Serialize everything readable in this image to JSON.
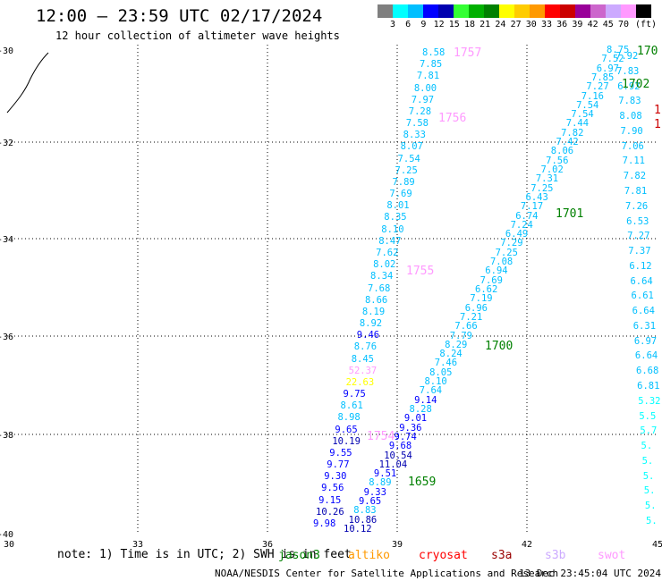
{
  "header": {
    "title": "12:00 – 23:59 UTC 02/17/2024",
    "subtitle": "12 hour collection of altimeter wave heights"
  },
  "colorbar": {
    "colors": [
      "#7f7f7f",
      "#00ffff",
      "#00bfff",
      "#0000ff",
      "#0000b0",
      "#33ff33",
      "#00b000",
      "#008000",
      "#ffff00",
      "#ffcc00",
      "#ff9900",
      "#ff0000",
      "#cc0000",
      "#990099",
      "#cc66cc",
      "#ccaaff",
      "#ff99ff",
      "#000000"
    ],
    "labels": [
      "3",
      "6",
      "9",
      "12",
      "15",
      "18",
      "21",
      "24",
      "27",
      "30",
      "33",
      "36",
      "39",
      "42",
      "45",
      "70"
    ],
    "unit": "(ft)"
  },
  "axes": {
    "lat_labels": [
      "-30",
      "-32",
      "-34",
      "-36",
      "-38",
      "-40"
    ],
    "lon_labels": [
      "30",
      "33",
      "36",
      "39",
      "42",
      "45"
    ]
  },
  "footer": {
    "note": "note: 1) Time is in UTC; 2) SWH is in feet",
    "satellites": [
      {
        "name": "jason3",
        "color": "#008000"
      },
      {
        "name": "altiko",
        "color": "#ff9900"
      },
      {
        "name": "cryosat",
        "color": "#ff0000"
      },
      {
        "name": "s3a",
        "color": "#990000"
      },
      {
        "name": "s3b",
        "color": "#ccaaff"
      },
      {
        "name": "swot",
        "color": "#ff99ff"
      }
    ],
    "credit": "NOAA/NESDIS Center for Satellite Applications and Research",
    "generated": "13 Dec 23:45:04 UTC 2024"
  },
  "map_data": {
    "tracks": [
      {
        "id": "track-a",
        "values": [
          [
            "8.58",
            "#00bfff"
          ],
          [
            "7.85",
            "#00bfff"
          ],
          [
            "7.81",
            "#00bfff"
          ],
          [
            "8.00",
            "#00bfff"
          ],
          [
            "7.97",
            "#00bfff"
          ],
          [
            "7.28",
            "#00bfff"
          ],
          [
            "7.58",
            "#00bfff"
          ],
          [
            "8.33",
            "#00bfff"
          ],
          [
            "8.07",
            "#00bfff"
          ],
          [
            "7.54",
            "#00bfff"
          ],
          [
            "7.25",
            "#00bfff"
          ],
          [
            "7.89",
            "#00bfff"
          ],
          [
            "7.69",
            "#00bfff"
          ],
          [
            "8.01",
            "#00bfff"
          ],
          [
            "8.35",
            "#00bfff"
          ],
          [
            "8.10",
            "#00bfff"
          ],
          [
            "8.47",
            "#00bfff"
          ],
          [
            "7.62",
            "#00bfff"
          ],
          [
            "8.02",
            "#00bfff"
          ],
          [
            "8.34",
            "#00bfff"
          ],
          [
            "7.68",
            "#00bfff"
          ],
          [
            "8.66",
            "#00bfff"
          ],
          [
            "8.19",
            "#00bfff"
          ],
          [
            "8.92",
            "#00bfff"
          ],
          [
            "9.46",
            "#0000ff"
          ],
          [
            "8.76",
            "#00bfff"
          ],
          [
            "8.45",
            "#00bfff"
          ],
          [
            "52.37",
            "#ff99ff"
          ],
          [
            "22.63",
            "#ffff00"
          ],
          [
            "9.75",
            "#0000ff"
          ],
          [
            "8.61",
            "#00bfff"
          ],
          [
            "8.98",
            "#00bfff"
          ],
          [
            "9.65",
            "#0000ff"
          ],
          [
            "10.19",
            "#0000b0"
          ],
          [
            "9.55",
            "#0000ff"
          ],
          [
            "9.77",
            "#0000ff"
          ],
          [
            "9.30",
            "#0000ff"
          ],
          [
            "9.56",
            "#0000ff"
          ],
          [
            "9.15",
            "#0000ff"
          ],
          [
            "10.26",
            "#0000b0"
          ],
          [
            "9.98",
            "#0000ff"
          ]
        ]
      },
      {
        "id": "track-b",
        "values": [
          [
            "8.75",
            "#00bfff"
          ],
          [
            "7.52",
            "#00bfff"
          ],
          [
            "6.97",
            "#00bfff"
          ],
          [
            "7.85",
            "#00bfff"
          ],
          [
            "7.27",
            "#00bfff"
          ],
          [
            "7.16",
            "#00bfff"
          ],
          [
            "7.54",
            "#00bfff"
          ],
          [
            "7.54",
            "#00bfff"
          ],
          [
            "7.44",
            "#00bfff"
          ],
          [
            "7.82",
            "#00bfff"
          ],
          [
            "7.42",
            "#00bfff"
          ],
          [
            "8.06",
            "#00bfff"
          ],
          [
            "7.56",
            "#00bfff"
          ],
          [
            "7.02",
            "#00bfff"
          ],
          [
            "7.31",
            "#00bfff"
          ],
          [
            "7.25",
            "#00bfff"
          ],
          [
            "6.43",
            "#00bfff"
          ],
          [
            "7.17",
            "#00bfff"
          ],
          [
            "6.74",
            "#00bfff"
          ],
          [
            "7.24",
            "#00bfff"
          ],
          [
            "6.49",
            "#00bfff"
          ],
          [
            "7.29",
            "#00bfff"
          ],
          [
            "7.25",
            "#00bfff"
          ],
          [
            "7.08",
            "#00bfff"
          ],
          [
            "6.94",
            "#00bfff"
          ],
          [
            "7.69",
            "#00bfff"
          ],
          [
            "6.62",
            "#00bfff"
          ],
          [
            "7.19",
            "#00bfff"
          ],
          [
            "6.96",
            "#00bfff"
          ],
          [
            "7.21",
            "#00bfff"
          ],
          [
            "7.66",
            "#00bfff"
          ],
          [
            "7.79",
            "#00bfff"
          ],
          [
            "8.29",
            "#00bfff"
          ],
          [
            "8.24",
            "#00bfff"
          ],
          [
            "7.46",
            "#00bfff"
          ],
          [
            "8.05",
            "#00bfff"
          ],
          [
            "8.10",
            "#00bfff"
          ],
          [
            "7.64",
            "#00bfff"
          ],
          [
            "9.14",
            "#0000ff"
          ],
          [
            "8.28",
            "#00bfff"
          ],
          [
            "9.01",
            "#0000ff"
          ],
          [
            "9.36",
            "#0000ff"
          ],
          [
            "9.74",
            "#0000ff"
          ],
          [
            "9.68",
            "#0000ff"
          ],
          [
            "10.54",
            "#0000b0"
          ],
          [
            "11.04",
            "#0000b0"
          ],
          [
            "9.51",
            "#0000ff"
          ],
          [
            "8.89",
            "#00bfff"
          ],
          [
            "9.33",
            "#0000ff"
          ],
          [
            "9.65",
            "#0000ff"
          ],
          [
            "8.83",
            "#00bfff"
          ],
          [
            "10.86",
            "#0000b0"
          ],
          [
            "10.12",
            "#0000b0"
          ]
        ]
      },
      {
        "id": "track-c",
        "values": [
          [
            "7.92",
            "#00bfff"
          ],
          [
            "7.83",
            "#00bfff"
          ],
          [
            "6.92",
            "#00bfff"
          ],
          [
            "7.83",
            "#00bfff"
          ],
          [
            "8.08",
            "#00bfff"
          ],
          [
            "7.90",
            "#00bfff"
          ],
          [
            "7.06",
            "#00bfff"
          ],
          [
            "7.11",
            "#00bfff"
          ],
          [
            "7.82",
            "#00bfff"
          ],
          [
            "7.81",
            "#00bfff"
          ],
          [
            "7.26",
            "#00bfff"
          ],
          [
            "6.53",
            "#00bfff"
          ],
          [
            "7.27",
            "#00bfff"
          ],
          [
            "7.37",
            "#00bfff"
          ],
          [
            "6.12",
            "#00bfff"
          ],
          [
            "6.64",
            "#00bfff"
          ],
          [
            "6.61",
            "#00bfff"
          ],
          [
            "6.64",
            "#00bfff"
          ],
          [
            "6.31",
            "#00bfff"
          ],
          [
            "6.97",
            "#00bfff"
          ],
          [
            "6.64",
            "#00bfff"
          ],
          [
            "6.68",
            "#00bfff"
          ],
          [
            "6.81",
            "#00bfff"
          ],
          [
            "5.32",
            "#00ffff"
          ],
          [
            "5.5",
            "#00ffff"
          ],
          [
            "5.7",
            "#00ffff"
          ],
          [
            "5.",
            "#00ffff"
          ],
          [
            "5.",
            "#00ffff"
          ],
          [
            "5.",
            "#00ffff"
          ],
          [
            "5.",
            "#00ffff"
          ],
          [
            "5.",
            "#00ffff"
          ],
          [
            "5.",
            "#00ffff"
          ]
        ]
      }
    ],
    "time_labels": [
      {
        "text": "1757",
        "color": "#ff99ff"
      },
      {
        "text": "1756",
        "color": "#ff99ff"
      },
      {
        "text": "1755",
        "color": "#ff99ff"
      },
      {
        "text": "1754",
        "color": "#ff99ff"
      },
      {
        "text": "1702",
        "color": "#008000"
      },
      {
        "text": "1701",
        "color": "#008000"
      },
      {
        "text": "1700",
        "color": "#008000"
      },
      {
        "text": "1659",
        "color": "#008000"
      },
      {
        "text": "170",
        "color": "#008000"
      },
      {
        "text": "1",
        "color": "#cc0000"
      },
      {
        "text": "1",
        "color": "#cc0000"
      }
    ]
  }
}
